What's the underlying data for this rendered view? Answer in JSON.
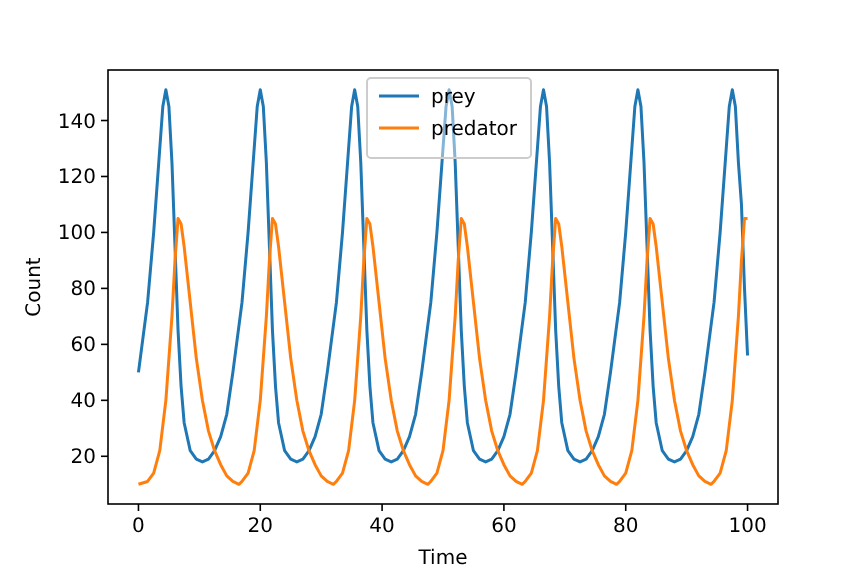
{
  "chart_data": {
    "type": "line",
    "xlabel": "Time",
    "ylabel": "Count",
    "xlim": [
      -5,
      105
    ],
    "ylim": [
      2.95,
      158.05
    ],
    "xticks": [
      0,
      20,
      40,
      60,
      80,
      100
    ],
    "yticks": [
      20,
      40,
      60,
      80,
      100,
      120,
      140
    ],
    "legend": "top",
    "grid": false,
    "series": [
      {
        "name": "prey",
        "color": "#1f77b4",
        "x": [
          0,
          1.5,
          2.5,
          3.5,
          4,
          4.5,
          5,
          5.5,
          6,
          6.5,
          7,
          7.5,
          8.5,
          9.5,
          10.5,
          11.5,
          12.5,
          13.5,
          14.5,
          15.5,
          17,
          18,
          19,
          19.5,
          20,
          20.5,
          21,
          21.5,
          22,
          22.5,
          23,
          24,
          25,
          26,
          27,
          28,
          29,
          30,
          31,
          32.5,
          33.5,
          34.5,
          35,
          35.5,
          36,
          36.5,
          37,
          37.5,
          38,
          38.5,
          39.5,
          40.5,
          41.5,
          42.5,
          43.5,
          44.5,
          45.5,
          46.5,
          48,
          49,
          50,
          50.5,
          51,
          51.5,
          52,
          52.5,
          53,
          53.5,
          54,
          55,
          56,
          57,
          58,
          59,
          60,
          61,
          62,
          63.5,
          64.5,
          65.5,
          66,
          66.5,
          67,
          67.5,
          68,
          68.5,
          69,
          69.5,
          70.5,
          71.5,
          72.5,
          73.5,
          74.5,
          75.5,
          76.5,
          77.5,
          79,
          80,
          81,
          81.5,
          82,
          82.5,
          83,
          83.5,
          84,
          84.5,
          85,
          86,
          87,
          88,
          89,
          90,
          91,
          92,
          93,
          94.5,
          95.5,
          96.5,
          97,
          97.5,
          98,
          98.5,
          99,
          99.5,
          100
        ],
        "values": [
          50,
          75,
          100,
          130,
          145,
          151,
          145,
          125,
          95,
          65,
          45,
          32,
          22,
          19,
          18,
          19,
          22,
          27,
          35,
          50,
          75,
          100,
          130,
          145,
          151,
          145,
          125,
          95,
          65,
          45,
          32,
          22,
          19,
          18,
          19,
          22,
          27,
          35,
          50,
          75,
          100,
          130,
          145,
          151,
          145,
          125,
          95,
          65,
          45,
          32,
          22,
          19,
          18,
          19,
          22,
          27,
          35,
          50,
          75,
          100,
          130,
          145,
          151,
          145,
          125,
          95,
          65,
          45,
          32,
          22,
          19,
          18,
          19,
          22,
          27,
          35,
          50,
          75,
          100,
          130,
          145,
          151,
          145,
          125,
          95,
          65,
          45,
          32,
          22,
          19,
          18,
          19,
          22,
          27,
          35,
          50,
          75,
          100,
          130,
          145,
          151,
          145,
          125,
          95,
          65,
          45,
          32,
          22,
          19,
          18,
          19,
          22,
          27,
          35,
          50,
          75,
          100,
          130,
          145,
          151,
          145,
          125,
          110,
          80,
          56
        ]
      },
      {
        "name": "predator",
        "color": "#ff7f0e",
        "x": [
          0,
          1.5,
          2.5,
          3.5,
          4.5,
          5.5,
          6,
          6.5,
          7,
          7.5,
          8.5,
          9.5,
          10.5,
          11.5,
          12.5,
          13.5,
          14.5,
          15.5,
          16.5,
          17,
          18,
          19,
          20,
          21,
          21.5,
          22,
          22.5,
          23,
          24,
          25,
          26,
          27,
          28,
          29,
          30,
          31,
          32,
          32.5,
          33.5,
          34.5,
          35.5,
          36.5,
          37,
          37.5,
          38,
          38.5,
          39.5,
          40.5,
          41.5,
          42.5,
          43.5,
          44.5,
          45.5,
          46.5,
          47.5,
          48,
          49,
          50,
          51,
          52,
          52.5,
          53,
          53.5,
          54,
          55,
          56,
          57,
          58,
          59,
          60,
          61,
          62,
          63,
          63.5,
          64.5,
          65.5,
          66.5,
          67.5,
          68,
          68.5,
          69,
          69.5,
          70.5,
          71.5,
          72.5,
          73.5,
          74.5,
          75.5,
          76.5,
          77.5,
          78.5,
          79,
          80,
          81,
          82,
          83,
          83.5,
          84,
          84.5,
          85,
          86,
          87,
          88,
          89,
          90,
          91,
          92,
          93,
          94,
          94.5,
          95.5,
          96.5,
          97.5,
          98.5,
          99,
          99.5,
          100
        ],
        "values": [
          10,
          11,
          14,
          22,
          40,
          70,
          90,
          105,
          103,
          95,
          75,
          55,
          40,
          29,
          22,
          17,
          13,
          11,
          10,
          11,
          14,
          22,
          40,
          70,
          90,
          105,
          103,
          95,
          75,
          55,
          40,
          29,
          22,
          17,
          13,
          11,
          10,
          11,
          14,
          22,
          40,
          70,
          90,
          105,
          103,
          95,
          75,
          55,
          40,
          29,
          22,
          17,
          13,
          11,
          10,
          11,
          14,
          22,
          40,
          70,
          90,
          105,
          103,
          95,
          75,
          55,
          40,
          29,
          22,
          17,
          13,
          11,
          10,
          11,
          14,
          22,
          40,
          70,
          90,
          105,
          103,
          95,
          75,
          55,
          40,
          29,
          22,
          17,
          13,
          11,
          10,
          11,
          14,
          22,
          40,
          70,
          90,
          105,
          103,
          95,
          75,
          55,
          40,
          29,
          22,
          17,
          13,
          11,
          10,
          11,
          14,
          22,
          40,
          70,
          90,
          105,
          105
        ]
      }
    ]
  }
}
